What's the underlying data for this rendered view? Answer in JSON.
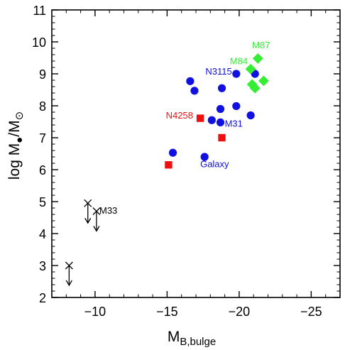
{
  "chart_data": {
    "type": "scatter",
    "ylabel": {
      "pre": "log M",
      "sub": "●",
      "mid": "/M",
      "sub2": "⊙"
    },
    "xlabel": {
      "main": "M",
      "sub": "B,bulge"
    },
    "xlim": [
      -7,
      -27
    ],
    "ylim": [
      2,
      11
    ],
    "xticks": [
      -10,
      -15,
      -20,
      -25
    ],
    "xtick_labels": [
      "−10",
      "−15",
      "−20",
      "−25"
    ],
    "yticks": [
      2,
      3,
      4,
      5,
      6,
      7,
      8,
      9,
      10,
      11
    ],
    "ytick_labels": [
      "2",
      "3",
      "4",
      "5",
      "6",
      "7",
      "8",
      "9",
      "10",
      "11"
    ],
    "colors": {
      "blue": "#1010e0",
      "red": "#ee1010",
      "green": "#33ee33",
      "black": "#000000"
    },
    "series": [
      {
        "marker": "circle",
        "color": "blue",
        "points": [
          {
            "x": -15.4,
            "y": 6.53
          },
          {
            "x": -16.6,
            "y": 8.77
          },
          {
            "x": -16.9,
            "y": 8.47
          },
          {
            "x": -17.6,
            "y": 6.4
          },
          {
            "x": -18.1,
            "y": 7.55
          },
          {
            "x": -18.7,
            "y": 7.9
          },
          {
            "x": -18.8,
            "y": 8.55
          },
          {
            "x": -18.7,
            "y": 7.48
          },
          {
            "x": -19.8,
            "y": 7.99
          },
          {
            "x": -19.8,
            "y": 9.0
          },
          {
            "x": -20.8,
            "y": 7.7
          },
          {
            "x": -21.1,
            "y": 9.0
          }
        ]
      },
      {
        "marker": "square",
        "color": "red",
        "points": [
          {
            "x": -15.1,
            "y": 6.15
          },
          {
            "x": -17.3,
            "y": 7.61
          },
          {
            "x": -18.8,
            "y": 7.0
          }
        ]
      },
      {
        "marker": "diamond",
        "color": "green",
        "points": [
          {
            "x": -20.8,
            "y": 9.15
          },
          {
            "x": -21.3,
            "y": 9.48
          },
          {
            "x": -20.9,
            "y": 8.67
          },
          {
            "x": -21.1,
            "y": 8.55
          },
          {
            "x": -21.7,
            "y": 8.78
          }
        ]
      },
      {
        "marker": "upper-limit",
        "color": "black",
        "points": [
          {
            "x": -9.5,
            "y": 4.95
          },
          {
            "x": -10.1,
            "y": 4.7
          },
          {
            "x": -8.2,
            "y": 3.0
          }
        ]
      }
    ],
    "annotations": [
      {
        "text": "N3115",
        "x": -19.5,
        "y": 8.98,
        "anchor": "end",
        "color": "blue"
      },
      {
        "text": "M31",
        "x": -19.0,
        "y": 7.35,
        "anchor": "start",
        "color": "blue"
      },
      {
        "text": "Galaxy",
        "x": -17.3,
        "y": 6.08,
        "anchor": "start",
        "color": "blue"
      },
      {
        "text": "N4258",
        "x": -16.8,
        "y": 7.6,
        "anchor": "end",
        "color": "red"
      },
      {
        "text": "M87",
        "x": -20.9,
        "y": 9.8,
        "anchor": "start",
        "color": "green"
      },
      {
        "text": "M84",
        "x": -20.6,
        "y": 9.3,
        "anchor": "end",
        "color": "green"
      },
      {
        "text": "M33",
        "x": -10.3,
        "y": 4.62,
        "anchor": "start",
        "color": "black"
      }
    ]
  }
}
